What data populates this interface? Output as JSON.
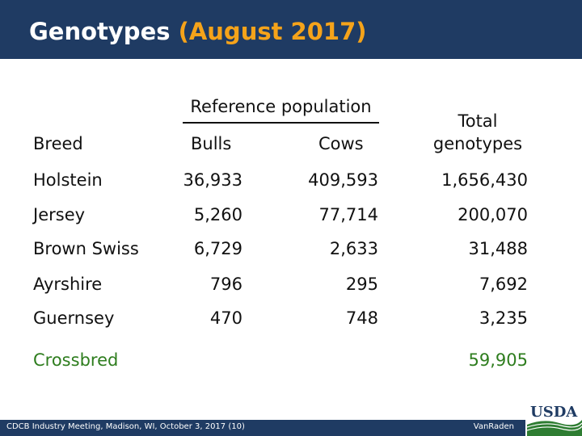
{
  "header": {
    "title_main": "Genotypes ",
    "title_accent": "(August 2017)"
  },
  "table": {
    "group_header": "Reference population",
    "columns": {
      "breed": "Breed",
      "bulls": "Bulls",
      "cows": "Cows",
      "total_line1": "Total",
      "total_line2": "genotypes"
    },
    "rows": [
      {
        "breed": "Holstein",
        "bulls": "36,933",
        "cows": "409,593",
        "total": "1,656,430"
      },
      {
        "breed": "Jersey",
        "bulls": "5,260",
        "cows": "77,714",
        "total": "200,070"
      },
      {
        "breed": "Brown Swiss",
        "bulls": "6,729",
        "cows": "2,633",
        "total": "31,488"
      },
      {
        "breed": "Ayrshire",
        "bulls": "796",
        "cows": "295",
        "total": "7,692"
      },
      {
        "breed": "Guernsey",
        "bulls": "470",
        "cows": "748",
        "total": "3,235"
      }
    ],
    "crossbred": {
      "breed": "Crossbred",
      "total": "59,905"
    }
  },
  "footer": {
    "text": "CDCB Industry Meeting, Madison, WI, October 3, 2017 (10)",
    "author": "VanRaden"
  },
  "logo": {
    "text": "USDA"
  },
  "colors": {
    "header_bg": "#1f3b63",
    "accent": "#f5a31a",
    "crossbred": "#2e7d1e"
  }
}
